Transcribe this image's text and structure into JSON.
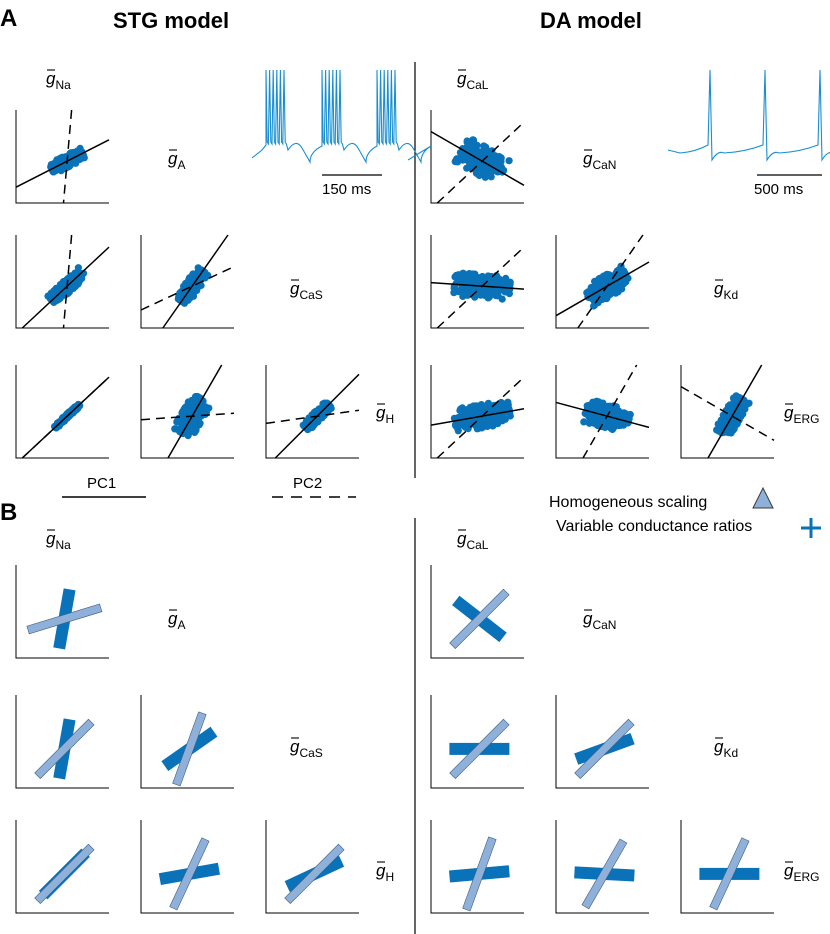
{
  "panels": {
    "a": "A",
    "b": "B"
  },
  "titles": {
    "stg": "STG model",
    "da": "DA model"
  },
  "labels": {
    "stg": [
      {
        "base": "g",
        "sub": "Na"
      },
      {
        "base": "g",
        "sub": "A"
      },
      {
        "base": "g",
        "sub": "CaS"
      },
      {
        "base": "g",
        "sub": "H"
      }
    ],
    "da": [
      {
        "base": "g",
        "sub": "CaL"
      },
      {
        "base": "g",
        "sub": "CaN"
      },
      {
        "base": "g",
        "sub": "Kd"
      },
      {
        "base": "g",
        "sub": "ERG"
      }
    ]
  },
  "scalebars": {
    "stg": "150 ms",
    "da": "500 ms"
  },
  "pc_legend": {
    "pc1": "PC1",
    "pc2": "PC2"
  },
  "b_legend": {
    "homogeneous": "Homogeneous scaling",
    "variable": "Variable conductance ratios"
  },
  "colors": {
    "blue": "#0a72b8",
    "light_blue": "#8fb0d8",
    "trace": "#1a8fd0",
    "line": "#000000"
  },
  "chart_data": [
    {
      "type": "scatter",
      "panel": "A-STG",
      "variables": [
        "gNa",
        "gA",
        "gCaS",
        "gH"
      ],
      "pairs": [
        {
          "x": "gNa",
          "y": "gA",
          "pc1_angle_deg": 27,
          "pc2_angle_deg": -95,
          "spread": [
            15,
            5
          ]
        },
        {
          "x": "gNa",
          "y": "gCaS",
          "pc1_angle_deg": 43,
          "pc2_angle_deg": -95,
          "spread": [
            18,
            5
          ]
        },
        {
          "x": "gA",
          "y": "gCaS",
          "pc1_angle_deg": 55,
          "pc2_angle_deg": 25,
          "spread": [
            16,
            6
          ]
        },
        {
          "x": "gNa",
          "y": "gH",
          "pc1_angle_deg": 43,
          "pc2_angle_deg": 43,
          "spread": [
            14,
            1.5
          ]
        },
        {
          "x": "gA",
          "y": "gH",
          "pc1_angle_deg": 60,
          "pc2_angle_deg": 4,
          "spread": [
            17,
            9
          ]
        },
        {
          "x": "gCaS",
          "y": "gH",
          "pc1_angle_deg": 45,
          "pc2_angle_deg": 8,
          "spread": [
            14,
            4
          ]
        }
      ]
    },
    {
      "type": "scatter",
      "panel": "A-DA",
      "variables": [
        "gCaL",
        "gCaN",
        "gKd",
        "gERG"
      ],
      "pairs": [
        {
          "x": "gCaL",
          "y": "gCaN",
          "pc1_angle_deg": -30,
          "pc2_angle_deg": 43,
          "spread": [
            20,
            12
          ]
        },
        {
          "x": "gCaL",
          "y": "gKd",
          "pc1_angle_deg": -4,
          "pc2_angle_deg": 43,
          "spread": [
            24,
            10
          ]
        },
        {
          "x": "gCaN",
          "y": "gKd",
          "pc1_angle_deg": 30,
          "pc2_angle_deg": 55,
          "spread": [
            19,
            9
          ]
        },
        {
          "x": "gCaL",
          "y": "gERG",
          "pc1_angle_deg": 10,
          "pc2_angle_deg": 43,
          "spread": [
            24,
            10
          ]
        },
        {
          "x": "gCaN",
          "y": "gERG",
          "pc1_angle_deg": -15,
          "pc2_angle_deg": 60,
          "spread": [
            19,
            10
          ]
        },
        {
          "x": "gKd",
          "y": "gERG",
          "pc1_angle_deg": 60,
          "pc2_angle_deg": -30,
          "spread": [
            17,
            7
          ]
        }
      ]
    },
    {
      "type": "scatter",
      "panel": "B-STG",
      "variables": [
        "gNa",
        "gA",
        "gCaS",
        "gH"
      ],
      "pairs": [
        {
          "x": "gNa",
          "y": "gA",
          "homogeneous_angle_deg": 17,
          "variable_angle_deg": 80
        },
        {
          "x": "gNa",
          "y": "gCaS",
          "homogeneous_angle_deg": 45,
          "variable_angle_deg": 80
        },
        {
          "x": "gA",
          "y": "gCaS",
          "homogeneous_angle_deg": 70,
          "variable_angle_deg": 35
        },
        {
          "x": "gNa",
          "y": "gH",
          "homogeneous_angle_deg": 45,
          "variable_angle_deg": 45
        },
        {
          "x": "gA",
          "y": "gH",
          "homogeneous_angle_deg": 65,
          "variable_angle_deg": 10
        },
        {
          "x": "gCaS",
          "y": "gH",
          "homogeneous_angle_deg": 45,
          "variable_angle_deg": 25
        }
      ]
    },
    {
      "type": "scatter",
      "panel": "B-DA",
      "variables": [
        "gCaL",
        "gCaN",
        "gKd",
        "gERG"
      ],
      "pairs": [
        {
          "x": "gCaL",
          "y": "gCaN",
          "homogeneous_angle_deg": 45,
          "variable_angle_deg": -38
        },
        {
          "x": "gCaL",
          "y": "gKd",
          "homogeneous_angle_deg": 45,
          "variable_angle_deg": 0
        },
        {
          "x": "gCaN",
          "y": "gKd",
          "homogeneous_angle_deg": 45,
          "variable_angle_deg": 20
        },
        {
          "x": "gCaL",
          "y": "gERG",
          "homogeneous_angle_deg": 70,
          "variable_angle_deg": 5
        },
        {
          "x": "gCaN",
          "y": "gERG",
          "homogeneous_angle_deg": 60,
          "variable_angle_deg": -3
        },
        {
          "x": "gKd",
          "y": "gERG",
          "homogeneous_angle_deg": 65,
          "variable_angle_deg": 0
        }
      ]
    }
  ]
}
